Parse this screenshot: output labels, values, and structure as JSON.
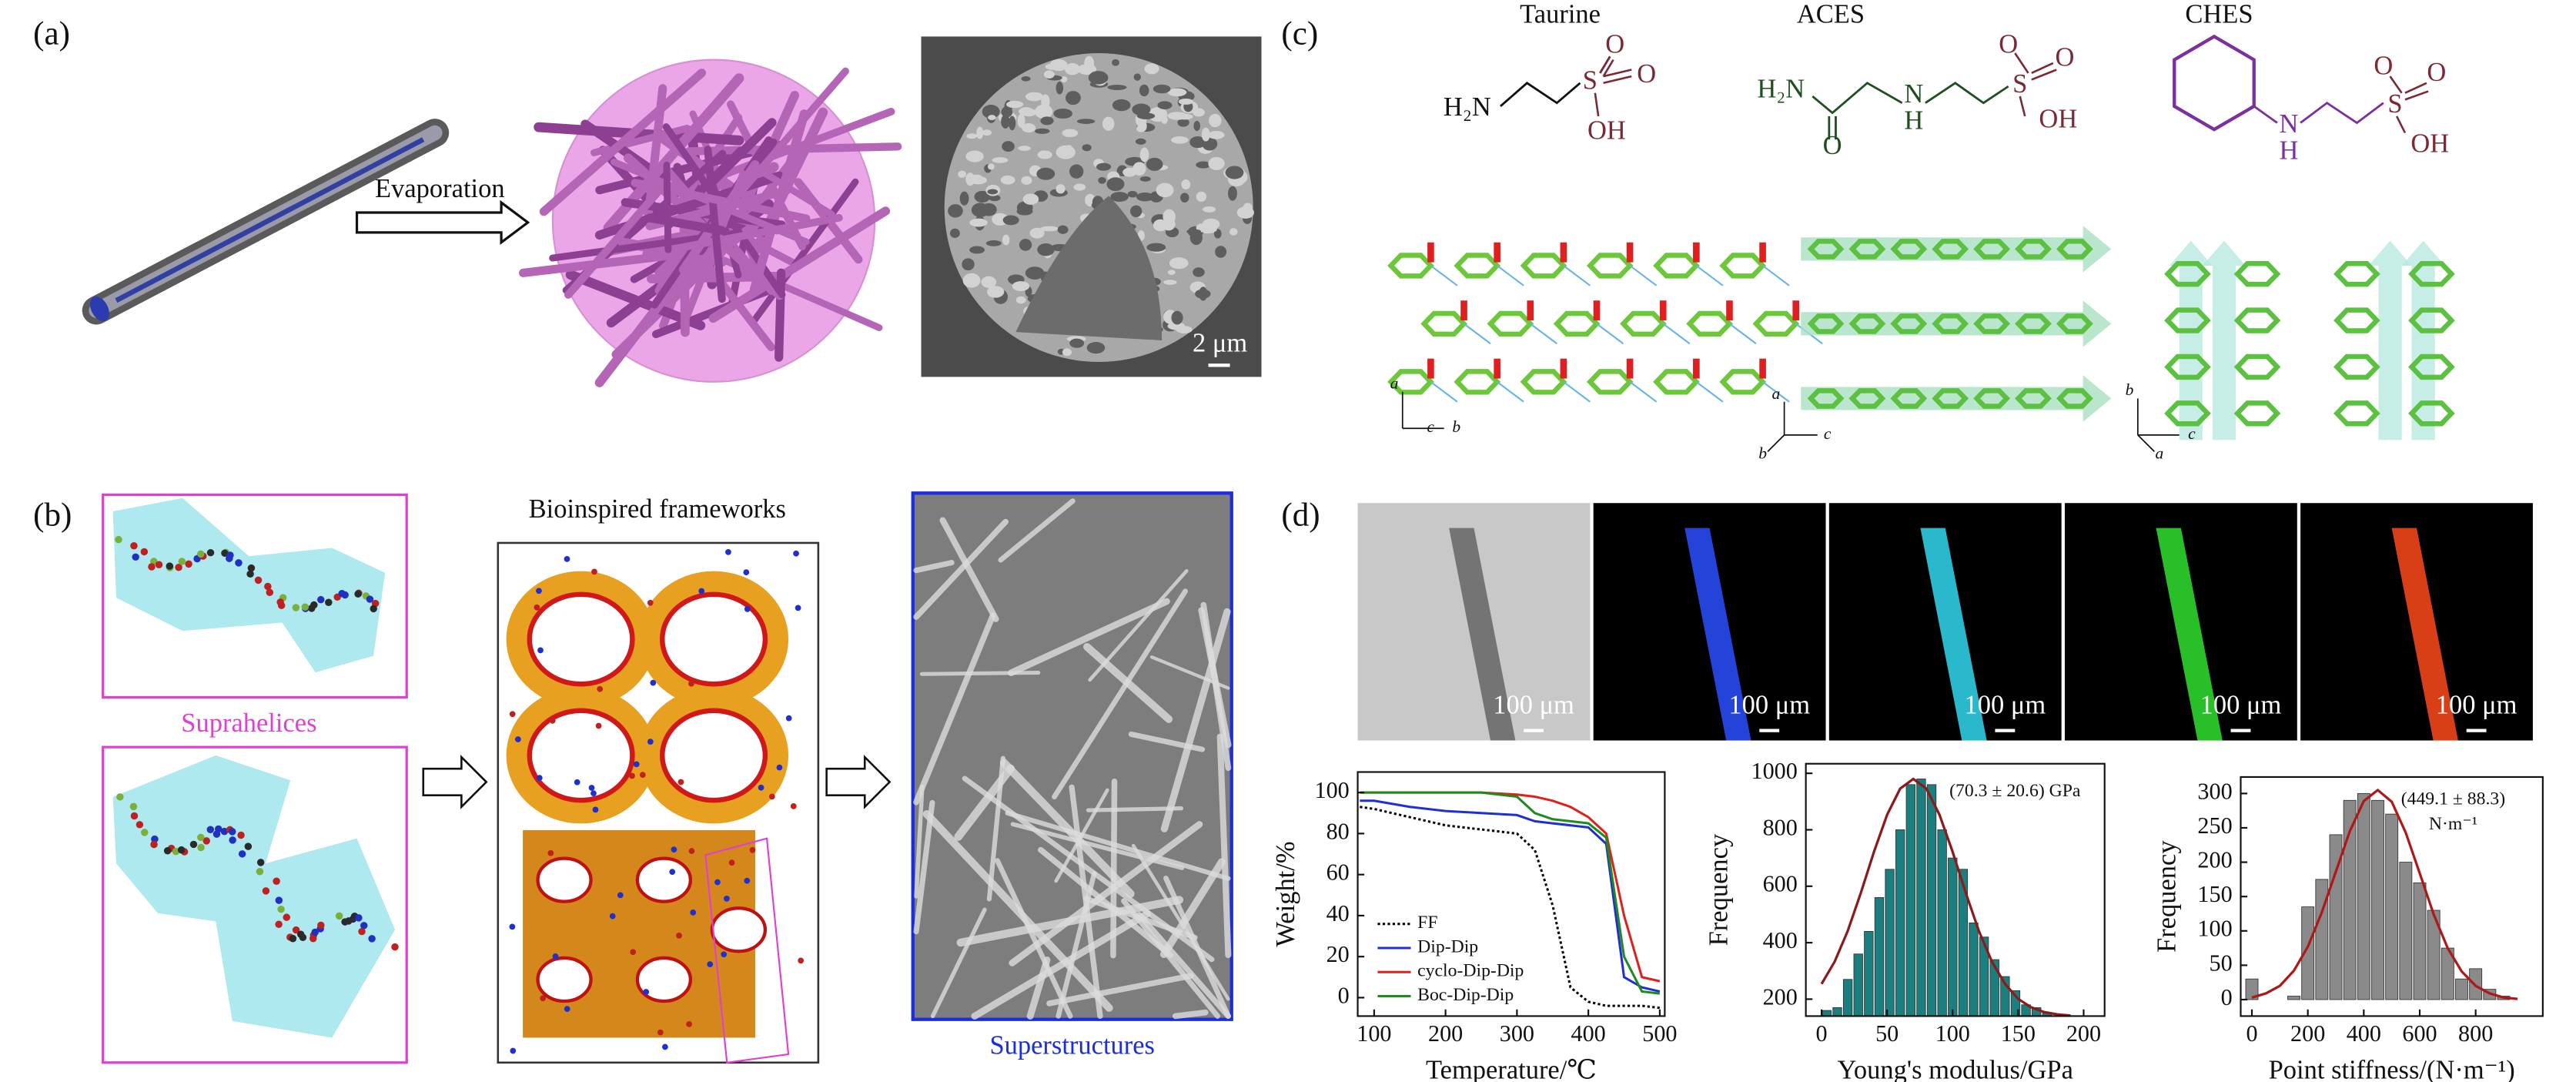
{
  "panel_labels": [
    "(a)",
    "(b)",
    "(c)",
    "(d)"
  ],
  "a": {
    "arrow_label": "Evaporation",
    "scale_bar": "2 μm"
  },
  "b": {
    "frameworks": "Bioinspired frameworks",
    "suprahelices": "Suprahelices",
    "superstructures": "Superstructures"
  },
  "c": {
    "molecules": [
      {
        "name": "Taurine",
        "labels": [
          "H₂N",
          "S",
          "O",
          "O",
          "OH"
        ]
      },
      {
        "name": "ACES",
        "labels": [
          "H₂N",
          "O",
          "N",
          "H",
          "S",
          "O",
          "O",
          "OH"
        ]
      },
      {
        "name": "CHES",
        "labels": [
          "N",
          "H",
          "S",
          "O",
          "O",
          "OH"
        ]
      }
    ],
    "axes": [
      [
        "a",
        "c",
        "b"
      ],
      [
        "a",
        "b",
        "c"
      ],
      [
        "b",
        "a",
        "c"
      ]
    ]
  },
  "d": {
    "scale_bars": [
      "100 μm",
      "100 μm",
      "100 μm",
      "100 μm",
      "100 μm"
    ],
    "charts": [
      {
        "type": "line",
        "x_label": "Temperature/℃",
        "y_label": "Weight/%",
        "x": [
          80,
          100,
          150,
          200,
          250,
          300,
          325,
          350,
          375,
          400,
          425,
          450,
          475,
          500
        ],
        "xlim": [
          77,
          507
        ],
        "xticks": [
          100,
          200,
          300,
          400,
          500
        ],
        "ylim": [
          -9,
          110
        ],
        "yticks": [
          0,
          20,
          40,
          60,
          80,
          100
        ],
        "legend": "lower left",
        "series": [
          {
            "name": "FF",
            "color": "#000000",
            "style": "dotted",
            "values": [
              93,
              92,
              88,
              84,
              82,
              80,
              72,
              45,
              5,
              -2,
              -4,
              -4,
              -4,
              -5
            ]
          },
          {
            "name": "Dip-Dip",
            "color": "#1f2fd0",
            "style": "solid",
            "values": [
              96,
              96,
              93,
              91,
              90,
              89,
              86,
              85,
              84,
              83,
              75,
              10,
              5,
              3
            ]
          },
          {
            "name": "cyclo-Dip-Dip",
            "color": "#e0201a",
            "style": "solid",
            "values": [
              100,
              100,
              100,
              100,
              100,
              99,
              98,
              96,
              93,
              88,
              80,
              40,
              10,
              8
            ]
          },
          {
            "name": "Boc-Dip-Dip",
            "color": "#1f8a1f",
            "style": "solid",
            "values": [
              100,
              100,
              100,
              100,
              100,
              98,
              90,
              87,
              86,
              85,
              78,
              20,
              3,
              2
            ]
          }
        ]
      },
      {
        "type": "histogram",
        "x_label": "Young's modulus/GPa",
        "y_label": "Frequency",
        "bins": [
          0,
          8,
          16,
          24,
          32,
          40,
          48,
          56,
          64,
          72,
          80,
          88,
          96,
          104,
          112,
          120,
          128,
          136,
          144,
          152,
          160,
          168,
          176
        ],
        "values": [
          160,
          170,
          270,
          360,
          440,
          560,
          660,
          800,
          960,
          980,
          960,
          800,
          700,
          660,
          470,
          420,
          340,
          280,
          230,
          180,
          170,
          150
        ],
        "color": "#1c7f7f",
        "fit_x": [
          0,
          10,
          20,
          30,
          40,
          50,
          60,
          70,
          80,
          90,
          100,
          110,
          120,
          130,
          140,
          150,
          160,
          170,
          180,
          190
        ],
        "fit_values": [
          254,
          333,
          442,
          577,
          722,
          853,
          946,
          980,
          946,
          853,
          722,
          577,
          442,
          333,
          254,
          201,
          171,
          154,
          146,
          142
        ],
        "fit_color": "#8b1a1a",
        "xlim": [
          -12,
          216
        ],
        "xticks": [
          0,
          50,
          100,
          150,
          200
        ],
        "ylim": [
          140,
          1034
        ],
        "yticks": [
          200,
          400,
          600,
          800,
          1000
        ],
        "annotation": [
          "(70.3 ± 20.6) GPa"
        ]
      },
      {
        "type": "histogram",
        "x_label": "Point stiffness/(N·m⁻¹)",
        "y_label": "Frequency",
        "bins": [
          -25,
          25,
          75,
          125,
          175,
          225,
          275,
          325,
          375,
          425,
          475,
          525,
          575,
          625,
          675,
          725,
          775,
          825,
          875,
          925
        ],
        "values": [
          30,
          0,
          0,
          5,
          135,
          175,
          240,
          290,
          300,
          290,
          270,
          200,
          170,
          130,
          75,
          30,
          45,
          15,
          5
        ],
        "color": "#8a8a8a",
        "fit_x": [
          0,
          50,
          100,
          150,
          200,
          250,
          300,
          350,
          400,
          450,
          500,
          550,
          600,
          650,
          700,
          750,
          800,
          850,
          900,
          950
        ],
        "fit_values": [
          3,
          9,
          20,
          42,
          77,
          127,
          186,
          245,
          289,
          305,
          288,
          243,
          184,
          124,
          75,
          41,
          20,
          9,
          3,
          1
        ],
        "fit_color": "#b01818",
        "xlim": [
          -40,
          1040
        ],
        "xticks": [
          0,
          200,
          400,
          600,
          800
        ],
        "ylim": [
          -24,
          324
        ],
        "yticks": [
          0,
          50,
          100,
          150,
          200,
          250,
          300
        ],
        "annotation": [
          "(449.1 ± 88.3)",
          "N·m⁻¹"
        ]
      }
    ]
  }
}
